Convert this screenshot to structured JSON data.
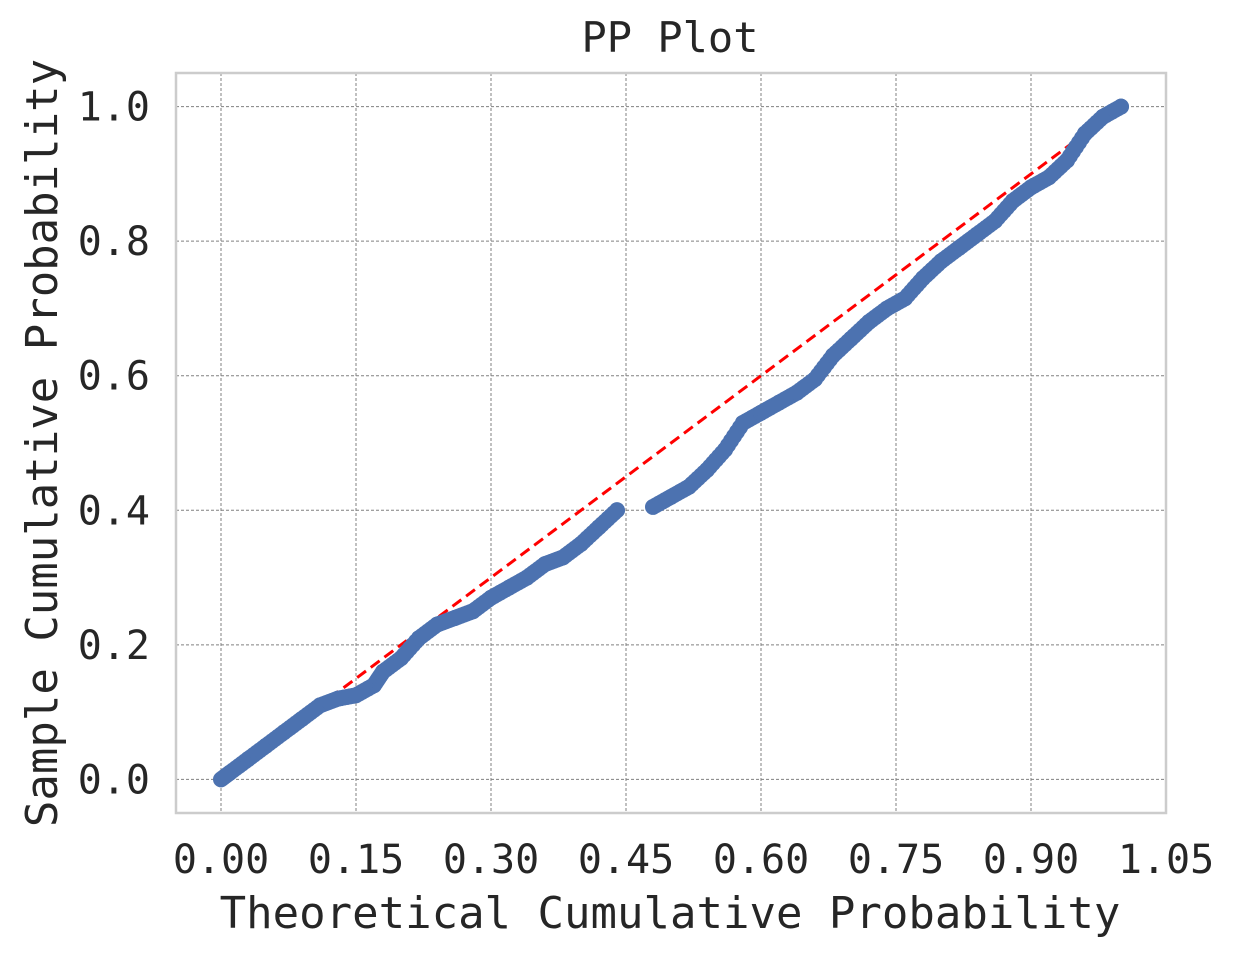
{
  "chart_data": {
    "type": "scatter",
    "title": "PP Plot",
    "xlabel": "Theoretical Cumulative Probability",
    "ylabel": "Sample Cumulative Probability",
    "xlim": [
      -0.05,
      1.05
    ],
    "ylim": [
      -0.05,
      1.05
    ],
    "xticks": [
      0.0,
      0.15,
      0.3,
      0.45,
      0.6,
      0.75,
      0.9,
      1.05
    ],
    "xtick_labels": [
      "0.00",
      "0.15",
      "0.30",
      "0.45",
      "0.60",
      "0.75",
      "0.90",
      "1.05"
    ],
    "yticks": [
      0.0,
      0.2,
      0.4,
      0.6,
      0.8,
      1.0
    ],
    "ytick_labels": [
      "0.0",
      "0.2",
      "0.4",
      "0.6",
      "0.8",
      "1.0"
    ],
    "grid": true,
    "colors": {
      "points": "#4c72b0",
      "reference": "#ff0000",
      "grid": "#808080",
      "frame": "#cccccc"
    },
    "reference_line": {
      "style": "dashed",
      "x": [
        0.0,
        1.0
      ],
      "y": [
        0.0,
        1.0
      ]
    },
    "points_curve": {
      "x": [
        0.0,
        0.01,
        0.03,
        0.05,
        0.07,
        0.09,
        0.11,
        0.13,
        0.15,
        0.17,
        0.18,
        0.2,
        0.22,
        0.24,
        0.26,
        0.28,
        0.3,
        0.32,
        0.34,
        0.36,
        0.38,
        0.4,
        0.42,
        0.44,
        0.48,
        0.5,
        0.52,
        0.54,
        0.56,
        0.58,
        0.6,
        0.62,
        0.64,
        0.66,
        0.68,
        0.7,
        0.72,
        0.74,
        0.76,
        0.78,
        0.8,
        0.82,
        0.84,
        0.86,
        0.88,
        0.9,
        0.92,
        0.94,
        0.96,
        0.98,
        1.0
      ],
      "y": [
        0.0,
        0.01,
        0.03,
        0.05,
        0.07,
        0.09,
        0.11,
        0.12,
        0.125,
        0.14,
        0.16,
        0.18,
        0.21,
        0.23,
        0.24,
        0.25,
        0.27,
        0.285,
        0.3,
        0.32,
        0.33,
        0.35,
        0.375,
        0.4,
        0.405,
        0.42,
        0.435,
        0.46,
        0.49,
        0.53,
        0.545,
        0.56,
        0.575,
        0.595,
        0.63,
        0.655,
        0.68,
        0.7,
        0.715,
        0.745,
        0.77,
        0.79,
        0.81,
        0.83,
        0.86,
        0.88,
        0.895,
        0.92,
        0.96,
        0.985,
        1.0
      ]
    }
  }
}
